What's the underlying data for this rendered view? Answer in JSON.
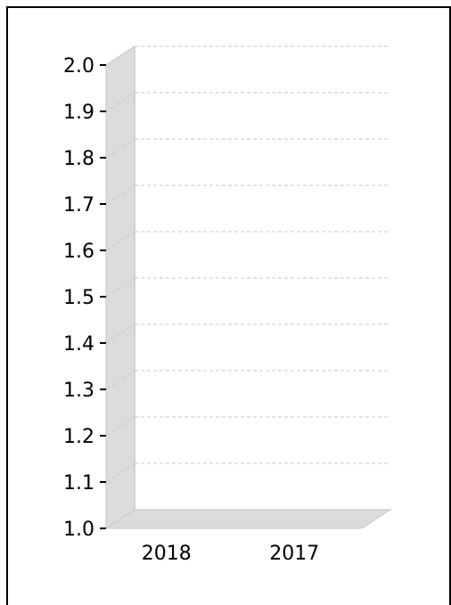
{
  "chart_data": {
    "type": "bar",
    "categories": [
      "2018",
      "2017"
    ],
    "series": [],
    "ylim": [
      1.0,
      2.0
    ],
    "yticks": [
      "1.0",
      "1.1",
      "1.2",
      "1.3",
      "1.4",
      "1.5",
      "1.6",
      "1.7",
      "1.8",
      "1.9",
      "2.0"
    ],
    "grid": true,
    "style": "3d",
    "colors": {
      "wall": "#dcdcdc",
      "wall_edge": "#c8c8c8",
      "grid": "#c8c8c8",
      "axis_text": "#000000"
    }
  }
}
